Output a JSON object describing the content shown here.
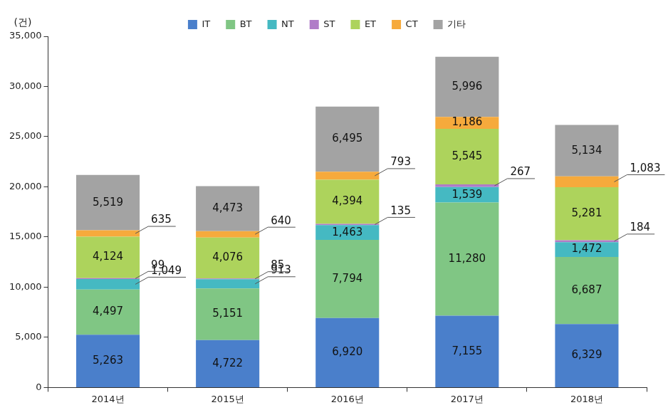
{
  "chart_data": {
    "type": "bar",
    "stacked": true,
    "data_labels": true,
    "legend": "top",
    "grid": false,
    "y_label": "(건)",
    "categories": [
      "2014년",
      "2015년",
      "2016년",
      "2017년",
      "2018년"
    ],
    "ylim": [
      0,
      35000
    ],
    "yticks": [
      0,
      {
        "value": 5000,
        "label": "5,000"
      },
      {
        "value": 10000,
        "label": "10,000"
      },
      {
        "value": 15000,
        "label": "15,000"
      },
      {
        "value": 20000,
        "label": "20,000"
      },
      {
        "value": 25000,
        "label": "25,000"
      },
      {
        "value": 30000,
        "label": "30,000"
      },
      {
        "value": 35000,
        "label": "35,000"
      }
    ],
    "series": [
      {
        "name": "IT",
        "color": "#4a7fcb",
        "values": [
          5263,
          4722,
          6920,
          7155,
          6329
        ],
        "value_labels": [
          "5,263",
          "4,722",
          "6,920",
          "7,155",
          "6,329"
        ]
      },
      {
        "name": "BT",
        "color": "#80c684",
        "values": [
          4497,
          5151,
          7794,
          11280,
          6687
        ],
        "value_labels": [
          "4,497",
          "5,151",
          "7,794",
          "11,280",
          "6,687"
        ]
      },
      {
        "name": "NT",
        "color": "#45b9c2",
        "values": [
          1049,
          913,
          1463,
          1539,
          1472
        ],
        "value_labels": [
          "1,049",
          "913",
          "1,463",
          "1,539",
          "1,472"
        ]
      },
      {
        "name": "ST",
        "color": "#b07cc8",
        "values": [
          99,
          85,
          135,
          267,
          184
        ],
        "value_labels": [
          "99",
          "85",
          "135",
          "267",
          "184"
        ]
      },
      {
        "name": "ET",
        "color": "#add35c",
        "values": [
          4124,
          4076,
          4394,
          5545,
          5281
        ],
        "value_labels": [
          "4,124",
          "4,076",
          "4,394",
          "5,545",
          "5,281"
        ]
      },
      {
        "name": "CT",
        "color": "#f6aa3c",
        "values": [
          635,
          640,
          793,
          1186,
          1083
        ],
        "value_labels": [
          "635",
          "640",
          "793",
          "1,186",
          "1,083"
        ]
      },
      {
        "name": "기타",
        "color": "#a3a3a3",
        "values": [
          5519,
          4473,
          6495,
          5996,
          5134
        ],
        "value_labels": [
          "5,519",
          "4,473",
          "6,495",
          "5,996",
          "5,134"
        ]
      }
    ]
  }
}
